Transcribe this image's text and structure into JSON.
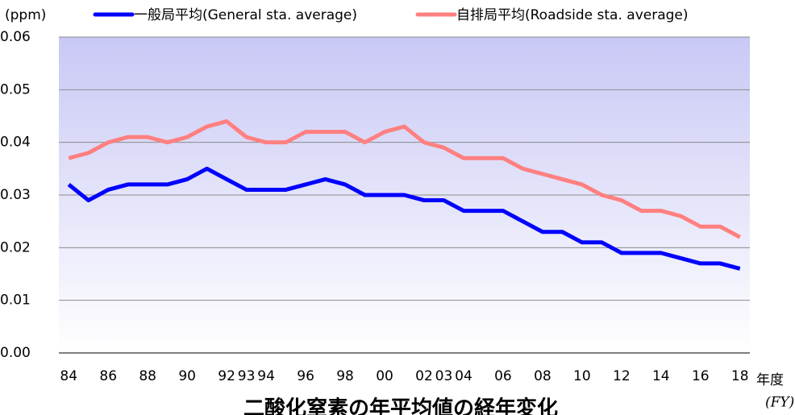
{
  "chart_data": {
    "type": "line",
    "title": "二酸化窒素の年平均値の経年変化",
    "y_label": "(ppm)",
    "x_label": "年度",
    "x_label_sub": "(FY)",
    "categories": [
      "84",
      null,
      "86",
      null,
      "88",
      null,
      "90",
      null,
      "92",
      "93",
      "94",
      null,
      "96",
      null,
      "98",
      null,
      "00",
      null,
      "02",
      "03",
      "04",
      null,
      "06",
      null,
      "08",
      null,
      "10",
      null,
      "12",
      null,
      "14",
      null,
      "16",
      null,
      "18"
    ],
    "series": [
      {
        "name": "一般局平均(General sta. average)",
        "color": "#0000ff",
        "values": [
          0.032,
          0.029,
          0.031,
          0.032,
          0.032,
          0.032,
          0.033,
          0.035,
          0.033,
          0.031,
          0.031,
          0.031,
          0.032,
          0.033,
          0.032,
          0.03,
          0.03,
          0.03,
          0.029,
          0.029,
          0.027,
          0.027,
          0.027,
          0.025,
          0.023,
          0.023,
          0.021,
          0.021,
          0.019,
          0.019,
          0.019,
          0.018,
          0.017,
          0.017,
          0.016
        ]
      },
      {
        "name": "自排局平均(Roadside sta. average)",
        "color": "#ff8080",
        "values": [
          0.037,
          0.038,
          0.04,
          0.041,
          0.041,
          0.04,
          0.041,
          0.043,
          0.044,
          0.041,
          0.04,
          0.04,
          0.042,
          0.042,
          0.042,
          0.04,
          0.042,
          0.043,
          0.04,
          0.039,
          0.037,
          0.037,
          0.037,
          0.035,
          0.034,
          0.033,
          0.032,
          0.03,
          0.029,
          0.027,
          0.027,
          0.026,
          0.024,
          0.024,
          0.022
        ]
      }
    ],
    "ylim": [
      0,
      0.06
    ],
    "yticks": [
      {
        "value": 0,
        "label": "0.00"
      },
      0.01,
      0.02,
      0.03,
      0.04,
      0.05,
      0.06
    ],
    "grid": true,
    "legend": "top"
  }
}
